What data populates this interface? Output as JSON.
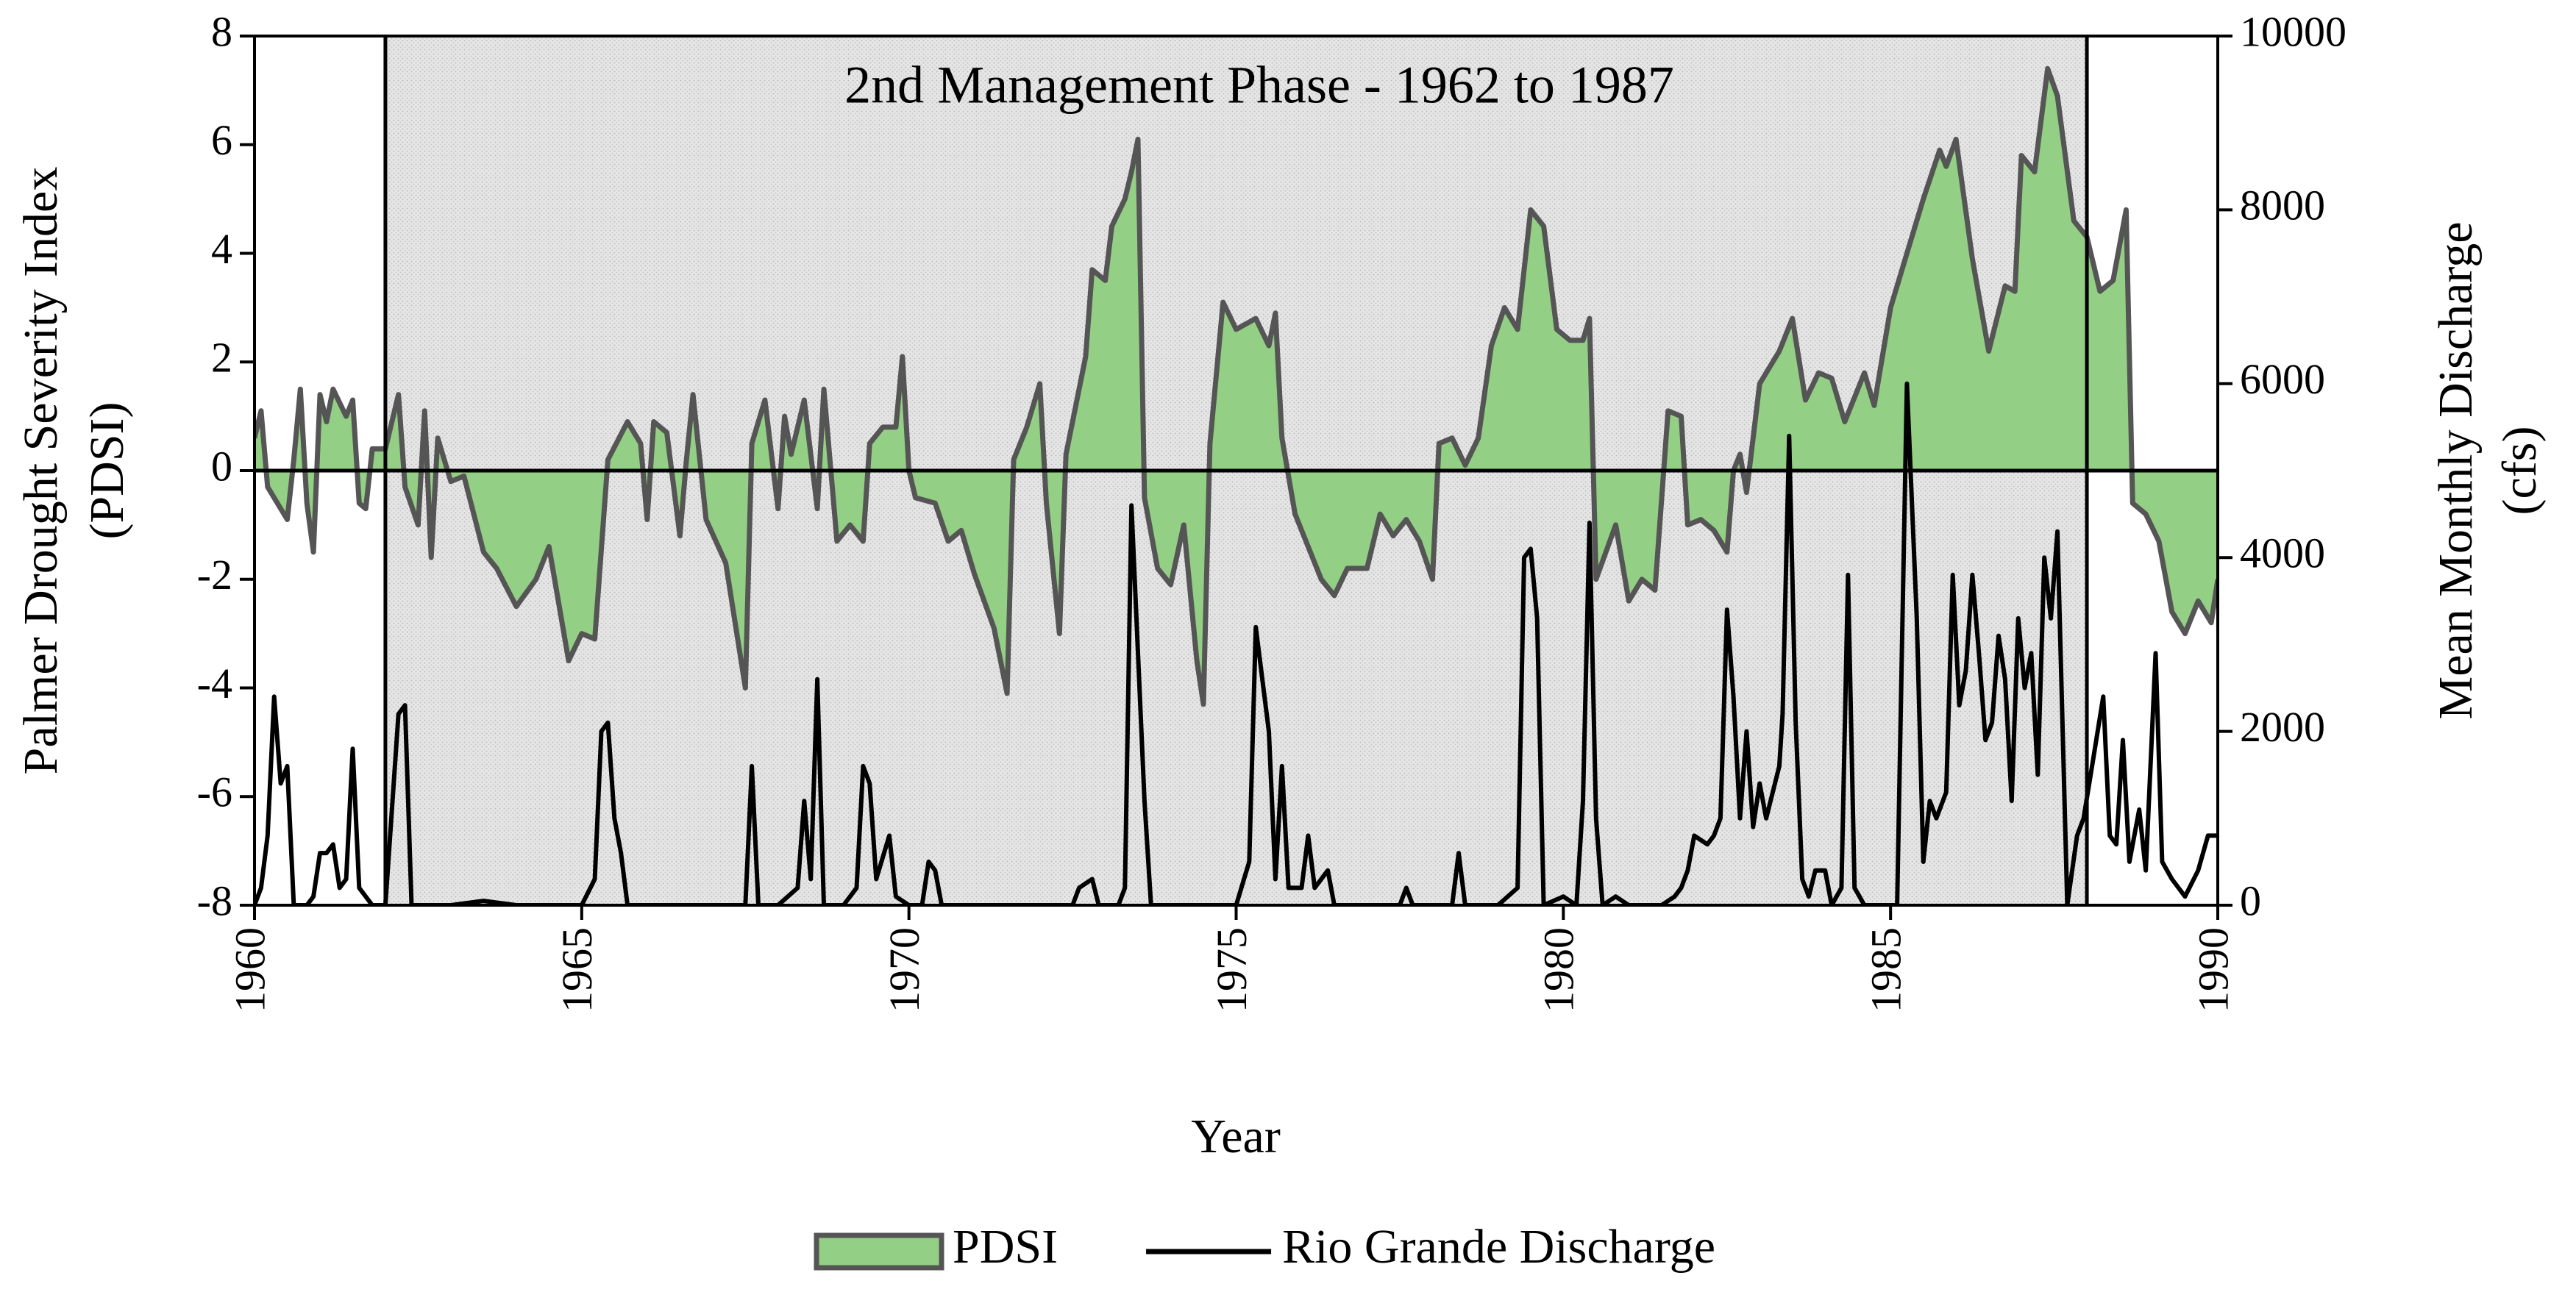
{
  "chart_data": {
    "type": "line",
    "annotation": "2nd Management Phase - 1962 to 1987",
    "span": [
      1962,
      1988
    ],
    "xlabel": "Year",
    "ylabel": [
      "Palmer Drought Severity Index",
      "(PDSI)"
    ],
    "y2label": [
      "Mean Monthly Discharge",
      "(cfs)"
    ],
    "xlim": [
      1960,
      1990
    ],
    "xticks": [
      1960,
      1965,
      1970,
      1975,
      1980,
      1985,
      1990
    ],
    "ylim": [
      -8,
      8
    ],
    "yticks": [
      -8,
      -6,
      -4,
      -2,
      0,
      2,
      4,
      6,
      8
    ],
    "y2lim": [
      0,
      10000
    ],
    "y2ticks": [
      0,
      2000,
      4000,
      6000,
      8000,
      10000
    ],
    "legend": "bottom",
    "series": [
      {
        "name": "PDSI",
        "color": "#93cf84",
        "edge": "#555555",
        "fill": "area",
        "axis": "y",
        "x": [
          1960.0,
          1960.1,
          1960.2,
          1960.5,
          1960.6,
          1960.7,
          1960.8,
          1960.9,
          1961.0,
          1961.1,
          1961.2,
          1961.4,
          1961.5,
          1961.6,
          1961.7,
          1961.8,
          1962.0,
          1962.2,
          1962.3,
          1962.5,
          1962.6,
          1962.7,
          1962.8,
          1963.0,
          1963.2,
          1963.5,
          1963.7,
          1964.0,
          1964.3,
          1964.5,
          1964.8,
          1965.0,
          1965.2,
          1965.4,
          1965.7,
          1965.9,
          1966.0,
          1966.1,
          1966.3,
          1966.5,
          1966.6,
          1966.7,
          1966.9,
          1967.2,
          1967.5,
          1967.6,
          1967.8,
          1968.0,
          1968.1,
          1968.2,
          1968.4,
          1968.6,
          1968.7,
          1968.9,
          1969.1,
          1969.3,
          1969.4,
          1969.6,
          1969.8,
          1969.9,
          1970.0,
          1970.1,
          1970.4,
          1970.6,
          1970.8,
          1971.0,
          1971.3,
          1971.5,
          1971.6,
          1971.8,
          1972.0,
          1972.1,
          1972.3,
          1972.4,
          1972.7,
          1972.8,
          1973.0,
          1973.1,
          1973.3,
          1973.4,
          1973.5,
          1973.6,
          1973.8,
          1974.0,
          1974.2,
          1974.4,
          1974.5,
          1974.6,
          1974.8,
          1975.0,
          1975.3,
          1975.5,
          1975.6,
          1975.7,
          1975.9,
          1976.1,
          1976.3,
          1976.5,
          1976.7,
          1977.0,
          1977.2,
          1977.4,
          1977.6,
          1977.8,
          1978.0,
          1978.1,
          1978.3,
          1978.5,
          1978.7,
          1978.9,
          1979.1,
          1979.3,
          1979.5,
          1979.7,
          1979.9,
          1980.1,
          1980.3,
          1980.4,
          1980.5,
          1980.8,
          1981.0,
          1981.2,
          1981.4,
          1981.6,
          1981.8,
          1981.9,
          1982.1,
          1982.3,
          1982.5,
          1982.6,
          1982.7,
          1982.8,
          1983.0,
          1983.3,
          1983.5,
          1983.7,
          1983.9,
          1984.1,
          1984.3,
          1984.6,
          1984.75,
          1985.0,
          1985.25,
          1985.5,
          1985.75,
          1985.85,
          1986.0,
          1986.25,
          1986.5,
          1986.75,
          1986.9,
          1987.0,
          1987.2,
          1987.4,
          1987.55,
          1987.8,
          1988.0,
          1988.2,
          1988.4,
          1988.6,
          1988.7,
          1988.9,
          1989.1,
          1989.3,
          1989.5,
          1989.7,
          1989.9,
          1990.0
        ],
        "values": [
          0.6,
          1.1,
          -0.3,
          -0.9,
          0.2,
          1.5,
          -0.6,
          -1.5,
          1.4,
          0.9,
          1.5,
          1.0,
          1.3,
          -0.6,
          -0.7,
          0.4,
          0.4,
          1.4,
          -0.3,
          -1.0,
          1.1,
          -1.6,
          0.6,
          -0.2,
          -0.1,
          -1.5,
          -1.8,
          -2.5,
          -2.0,
          -1.4,
          -3.5,
          -3.0,
          -3.1,
          0.2,
          0.9,
          0.5,
          -0.9,
          0.9,
          0.7,
          -1.2,
          0.2,
          1.4,
          -0.9,
          -1.7,
          -4.0,
          0.5,
          1.3,
          -0.7,
          1.0,
          0.3,
          1.3,
          -0.7,
          1.5,
          -1.3,
          -1.0,
          -1.3,
          0.5,
          0.8,
          0.8,
          2.1,
          0,
          -0.5,
          -0.6,
          -1.3,
          -1.1,
          -1.9,
          -2.9,
          -4.1,
          0.2,
          0.8,
          1.6,
          -0.6,
          -3.0,
          0.3,
          2.1,
          3.7,
          3.5,
          4.5,
          5.0,
          5.5,
          6.1,
          -0.5,
          -1.8,
          -2.1,
          -1.0,
          -3.5,
          -4.3,
          0.5,
          3.1,
          2.6,
          2.8,
          2.3,
          2.9,
          0.6,
          -0.8,
          -1.4,
          -2.0,
          -2.3,
          -1.8,
          -1.8,
          -0.8,
          -1.2,
          -0.9,
          -1.3,
          -2.0,
          0.5,
          0.6,
          0.1,
          0.6,
          2.3,
          3.0,
          2.6,
          4.8,
          4.5,
          2.6,
          2.4,
          2.4,
          2.8,
          -2.0,
          -1.0,
          -2.4,
          -2.0,
          -2.2,
          1.1,
          1.0,
          -1.0,
          -0.9,
          -1.1,
          -1.5,
          0.0,
          0.3,
          -0.4,
          1.6,
          2.2,
          2.8,
          1.3,
          1.8,
          1.7,
          0.9,
          1.8,
          1.2,
          3.0,
          4.0,
          5.0,
          5.9,
          5.6,
          6.1,
          3.9,
          2.2,
          3.4,
          3.3,
          5.8,
          5.5,
          7.4,
          6.9,
          4.6,
          4.3,
          3.3,
          3.5,
          4.8,
          -0.6,
          -0.8,
          -1.3,
          -2.6,
          -3.0,
          -2.4,
          -2.8,
          -2.0
        ]
      },
      {
        "name": "Rio Grande Discharge",
        "color": "#000000",
        "axis": "y2",
        "x": [
          1960.0,
          1960.1,
          1960.2,
          1960.3,
          1960.4,
          1960.5,
          1960.6,
          1960.8,
          1960.9,
          1961.0,
          1961.1,
          1961.2,
          1961.3,
          1961.4,
          1961.5,
          1961.6,
          1961.7,
          1961.8,
          1962.0,
          1962.2,
          1962.3,
          1962.4,
          1963.0,
          1963.5,
          1964.0,
          1965.0,
          1965.2,
          1965.3,
          1965.4,
          1965.5,
          1965.6,
          1965.7,
          1966.0,
          1967.0,
          1967.5,
          1967.6,
          1967.7,
          1968.0,
          1968.3,
          1968.4,
          1968.5,
          1968.6,
          1968.7,
          1969.0,
          1969.2,
          1969.3,
          1969.4,
          1969.5,
          1969.7,
          1969.8,
          1970.0,
          1970.2,
          1970.3,
          1970.4,
          1970.5,
          1971.0,
          1972.0,
          1972.5,
          1972.6,
          1972.8,
          1972.9,
          1973.2,
          1973.3,
          1973.4,
          1973.6,
          1973.7,
          1974.0,
          1975.0,
          1975.2,
          1975.3,
          1975.5,
          1975.6,
          1975.7,
          1975.8,
          1976.0,
          1976.1,
          1976.2,
          1976.4,
          1976.5,
          1977.0,
          1977.5,
          1977.6,
          1977.7,
          1978.0,
          1978.3,
          1978.4,
          1978.5,
          1979.0,
          1979.3,
          1979.4,
          1979.5,
          1979.6,
          1979.7,
          1980.0,
          1980.2,
          1980.3,
          1980.4,
          1980.5,
          1980.6,
          1980.8,
          1981.0,
          1981.5,
          1981.7,
          1981.8,
          1981.9,
          1982.0,
          1982.2,
          1982.3,
          1982.4,
          1982.5,
          1982.6,
          1982.7,
          1982.8,
          1982.9,
          1983.0,
          1983.1,
          1983.2,
          1983.3,
          1983.35,
          1983.45,
          1983.55,
          1983.65,
          1983.75,
          1983.85,
          1984.0,
          1984.1,
          1984.25,
          1984.35,
          1984.45,
          1984.6,
          1985.1,
          1985.25,
          1985.4,
          1985.5,
          1985.6,
          1985.7,
          1985.85,
          1985.95,
          1986.05,
          1986.15,
          1986.25,
          1986.35,
          1986.45,
          1986.55,
          1986.65,
          1986.75,
          1986.85,
          1986.95,
          1987.05,
          1987.15,
          1987.25,
          1987.35,
          1987.45,
          1987.55,
          1987.7,
          1987.85,
          1987.95,
          1988.1,
          1988.25,
          1988.35,
          1988.45,
          1988.55,
          1988.65,
          1988.8,
          1988.9,
          1989.05,
          1989.15,
          1989.3,
          1989.5,
          1989.7,
          1989.85,
          1990.0
        ],
        "values": [
          0,
          200,
          800,
          2400,
          1400,
          1600,
          0,
          0,
          100,
          600,
          600,
          700,
          200,
          300,
          1800,
          200,
          100,
          0,
          0,
          2200,
          2300,
          0,
          0,
          50,
          0,
          0,
          300,
          2000,
          2100,
          1000,
          600,
          0,
          0,
          0,
          0,
          1600,
          0,
          0,
          200,
          1200,
          300,
          2600,
          0,
          0,
          200,
          1600,
          1400,
          300,
          800,
          100,
          0,
          0,
          500,
          400,
          0,
          0,
          0,
          0,
          200,
          300,
          0,
          0,
          200,
          4600,
          1200,
          0,
          0,
          0,
          500,
          3200,
          2000,
          300,
          1600,
          200,
          200,
          800,
          200,
          400,
          0,
          0,
          0,
          200,
          0,
          0,
          0,
          600,
          0,
          0,
          200,
          4000,
          4100,
          3300,
          0,
          100,
          0,
          1200,
          4400,
          1000,
          0,
          100,
          0,
          0,
          100,
          200,
          400,
          800,
          700,
          800,
          1000,
          3400,
          2400,
          1000,
          2000,
          900,
          1400,
          1000,
          1300,
          1600,
          2200,
          5400,
          2100,
          300,
          100,
          400,
          400,
          0,
          200,
          3800,
          200,
          0,
          0,
          6000,
          3300,
          500,
          1200,
          1000,
          1300,
          3800,
          2300,
          2700,
          3800,
          2900,
          1900,
          2100,
          3100,
          2600,
          1200,
          3300,
          2500,
          2900,
          1500,
          4000,
          3300,
          4300,
          0,
          800,
          1000,
          1700,
          2400,
          800,
          700,
          1900,
          500,
          1100,
          400,
          2900,
          500,
          300,
          100,
          400,
          800,
          800
        ]
      }
    ]
  }
}
